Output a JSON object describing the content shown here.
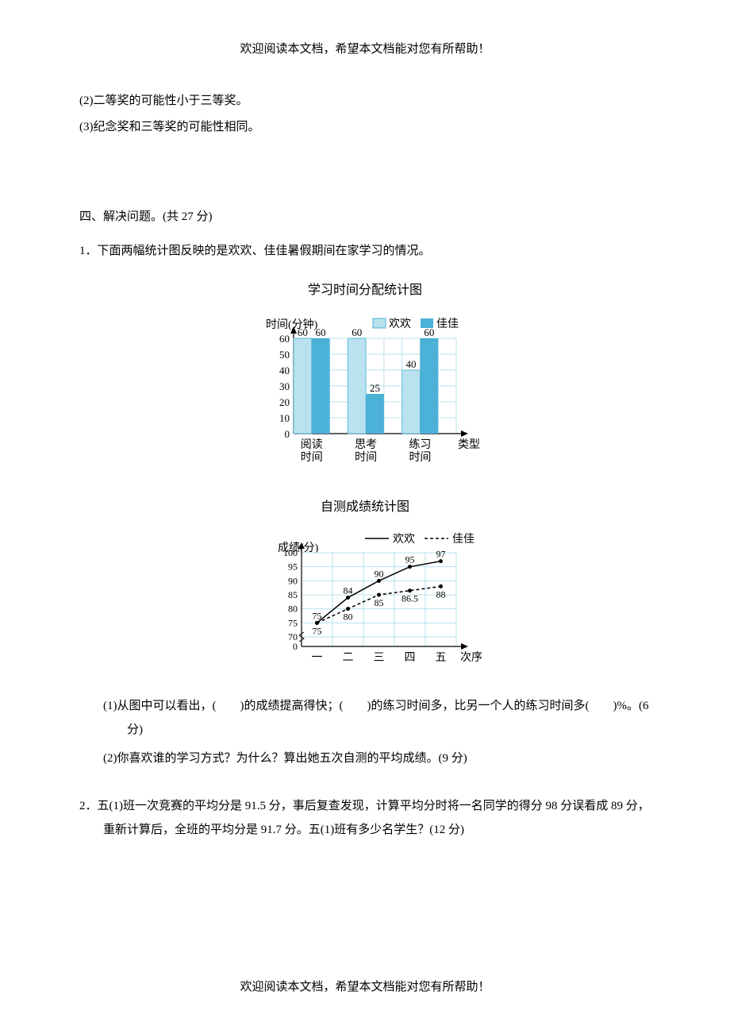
{
  "header_note": "欢迎阅读本文档，希望本文档能对您有所帮助！",
  "footer_note": "欢迎阅读本文档，希望本文档能对您有所帮助！",
  "line_2": "(2)二等奖的可能性小于三等奖。",
  "line_3": "(3)纪念奖和三等奖的可能性相同。",
  "section4_heading": "四、解决问题。(共 27 分)",
  "q1_intro": "1．下面两幅统计图反映的是欢欢、佳佳暑假期间在家学习的情况。",
  "bar_chart": {
    "title": "学习时间分配统计图",
    "y_label": "时间(分钟)",
    "x_label": "类型",
    "legend": [
      {
        "name": "欢欢",
        "color": "#b9e1ee"
      },
      {
        "name": "佳佳",
        "color": "#4bb1d6"
      }
    ],
    "categories": [
      "阅读\n时间",
      "思考\n时间",
      "练习\n时间"
    ],
    "series_huanhuan": [
      60,
      60,
      40
    ],
    "series_jiajia": [
      60,
      25,
      60
    ],
    "y_ticks": [
      0,
      10,
      20,
      30,
      40,
      50,
      60
    ],
    "grid_color": "#b9e1ee",
    "axis_color": "#000000",
    "bg": "#ffffff"
  },
  "line_chart": {
    "title": "自测成绩统计图",
    "y_label": "成绩(分)",
    "x_label": "次序",
    "legend": [
      {
        "name": "欢欢",
        "style": "solid"
      },
      {
        "name": "佳佳",
        "style": "dashed"
      }
    ],
    "x_categories": [
      "一",
      "二",
      "三",
      "四",
      "五"
    ],
    "y_ticks": [
      0,
      70,
      75,
      80,
      85,
      90,
      95,
      100
    ],
    "huanhuan": [
      75,
      84,
      90,
      95,
      97
    ],
    "jiajia": [
      75,
      80,
      85,
      86.5,
      88
    ],
    "grid_color": "#b9e1ee",
    "axis_color": "#000000",
    "bg": "#ffffff"
  },
  "q1_sub1": "(1)从图中可以看出，(　　)的成绩提高得快；(　　)的练习时间多，比另一个人的练习时间多(　　)%。(6 分)",
  "q1_sub2": "(2)你喜欢谁的学习方式？为什么？算出她五次自测的平均成绩。(9 分)",
  "q2": "2．五(1)班一次竞赛的平均分是 91.5 分，事后复查发现，计算平均分时将一名同学的得分 98 分误看成 89 分，重新计算后，全班的平均分是 91.7 分。五(1)班有多少名学生？(12 分)"
}
